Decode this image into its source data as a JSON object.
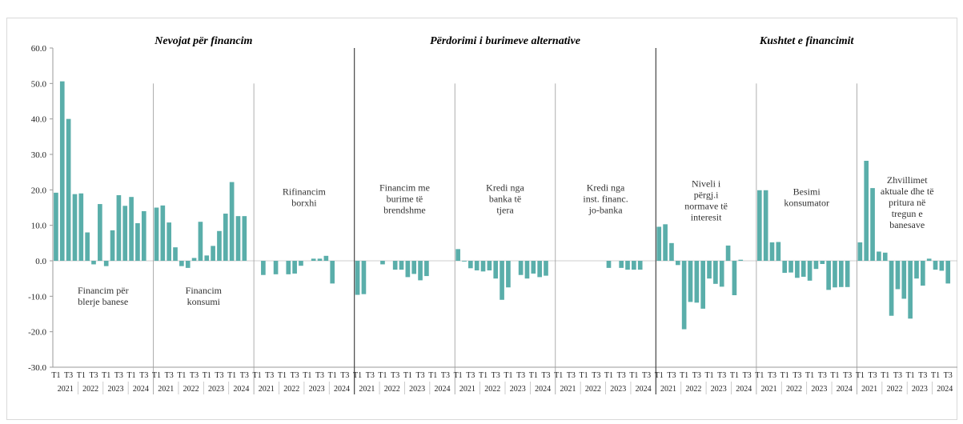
{
  "chart_data": {
    "type": "bar",
    "ylim": [
      -30,
      60
    ],
    "yticks": [
      "60.0",
      "50.0",
      "40.0",
      "30.0",
      "20.0",
      "10.0",
      "0.0",
      "-10.0",
      "-20.0",
      "-30.0"
    ],
    "color": "#5aaeaa",
    "quarter_labels": [
      "T1",
      "T3"
    ],
    "years": [
      "2021",
      "2022",
      "2023",
      "2024"
    ],
    "sections": [
      {
        "title": "Nevojat për financim"
      },
      {
        "title": "Përdorimi i burimeve alternative"
      },
      {
        "title": "Kushtet e financimit"
      }
    ],
    "panels": [
      {
        "section": 0,
        "label": [
          "Financim për",
          "blerje banese"
        ],
        "label_pos": "below",
        "values": [
          19.2,
          50.6,
          40.0,
          18.8,
          19.0,
          8.0,
          -1.0,
          16.0,
          -1.5,
          8.6,
          18.5,
          15.5,
          18.0,
          10.6,
          14.0,
          null
        ]
      },
      {
        "section": 0,
        "label": [
          "Financim",
          "konsumi"
        ],
        "label_pos": "below",
        "values": [
          15.0,
          15.6,
          10.8,
          3.8,
          -1.5,
          -2.0,
          0.8,
          11.0,
          1.5,
          4.2,
          8.4,
          13.3,
          22.2,
          12.6,
          12.6,
          null
        ]
      },
      {
        "section": 0,
        "label": [
          "Rifinancim",
          "borxhi"
        ],
        "label_pos": "above",
        "values": [
          null,
          -4.0,
          null,
          -3.8,
          null,
          -3.8,
          -3.6,
          -1.4,
          null,
          0.6,
          0.6,
          1.4,
          -6.4,
          null,
          null,
          null
        ]
      },
      {
        "section": 1,
        "label": [
          "Financim me",
          "burime të",
          "brendshme"
        ],
        "label_pos": "above",
        "values": [
          -9.6,
          -9.4,
          null,
          null,
          -1.0,
          null,
          -2.5,
          -2.5,
          -4.6,
          -3.7,
          -5.5,
          -4.3,
          null,
          null,
          null,
          null
        ]
      },
      {
        "section": 1,
        "label": [
          "Kredi nga",
          "banka të",
          "tjera"
        ],
        "label_pos": "above",
        "values": [
          3.3,
          -0.2,
          -2.1,
          -2.7,
          -3.0,
          -2.7,
          -5.0,
          -11.0,
          -7.5,
          null,
          -4.0,
          -5.0,
          -3.6,
          -4.6,
          -4.2,
          null
        ]
      },
      {
        "section": 1,
        "label": [
          "Kredi nga",
          "inst. financ.",
          "jo-banka"
        ],
        "label_pos": "above",
        "values": [
          null,
          null,
          null,
          null,
          null,
          null,
          null,
          null,
          -2.0,
          null,
          -2.0,
          -2.5,
          -2.5,
          -2.5,
          null,
          null
        ]
      },
      {
        "section": 2,
        "label": [
          "Niveli i",
          "përgj.i",
          "normave të",
          "interesit"
        ],
        "label_pos": "above",
        "values": [
          9.6,
          10.3,
          5.0,
          -1.2,
          -19.3,
          -11.6,
          -11.8,
          -13.5,
          -5.0,
          -6.5,
          -7.3,
          4.3,
          -9.7,
          0.3,
          null,
          null
        ]
      },
      {
        "section": 2,
        "label": [
          "Besimi",
          "konsumator"
        ],
        "label_pos": "above",
        "values": [
          19.9,
          19.9,
          5.2,
          5.3,
          -3.4,
          -3.3,
          -4.8,
          -4.5,
          -5.6,
          -2.3,
          -0.9,
          -8.2,
          -7.5,
          -7.4,
          -7.4,
          null
        ]
      },
      {
        "section": 2,
        "label": [
          "Zhvillimet",
          "aktuale dhe të",
          "pritura në",
          "tregun e",
          "banesave"
        ],
        "label_pos": "above",
        "values": [
          5.2,
          28.2,
          20.5,
          2.6,
          2.3,
          -15.5,
          -8.0,
          -10.7,
          -16.3,
          -5.0,
          -7.0,
          0.6,
          -2.5,
          -2.8,
          -6.4,
          null
        ]
      }
    ]
  }
}
